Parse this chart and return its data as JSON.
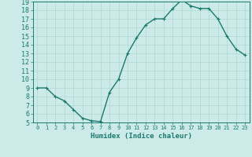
{
  "x": [
    0,
    1,
    2,
    3,
    4,
    5,
    6,
    7,
    8,
    9,
    10,
    11,
    12,
    13,
    14,
    15,
    16,
    17,
    18,
    19,
    20,
    21,
    22,
    23
  ],
  "y": [
    9,
    9,
    8,
    7.5,
    6.5,
    5.5,
    5.2,
    5.1,
    8.5,
    10,
    13,
    14.8,
    16.3,
    17,
    17,
    18.2,
    19.2,
    18.5,
    18.2,
    18.2,
    17,
    15,
    13.5,
    12.8
  ],
  "line_color": "#1a7a6e",
  "marker_color": "#1a7a6e",
  "bg_color": "#cceae7",
  "grid_color": "#b0d8d4",
  "xlabel": "Humidex (Indice chaleur)",
  "ylim": [
    5,
    19
  ],
  "xlim": [
    -0.5,
    23.5
  ],
  "yticks": [
    5,
    6,
    7,
    8,
    9,
    10,
    11,
    12,
    13,
    14,
    15,
    16,
    17,
    18,
    19
  ],
  "xticks": [
    0,
    1,
    2,
    3,
    4,
    5,
    6,
    7,
    8,
    9,
    10,
    11,
    12,
    13,
    14,
    15,
    16,
    17,
    18,
    19,
    20,
    21,
    22,
    23
  ],
  "tick_color": "#1a7a6e",
  "axis_color": "#1a7a6e",
  "font_color": "#1a7a6e",
  "xlabel_fontsize": 6.5,
  "tick_fontsize_x": 5,
  "tick_fontsize_y": 6,
  "linewidth": 1.0,
  "markersize": 2.5
}
